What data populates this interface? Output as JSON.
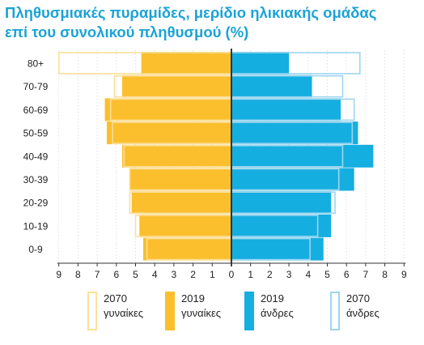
{
  "title_lines": [
    "Πληθυσμιακές πυραμίδες, μερίδιο ηλικιακής ομάδας",
    "επί του συνολικού πληθυσμού (%)"
  ],
  "colors": {
    "female_2019": "#fbbf2d",
    "male_2019": "#15aee0",
    "female_2070_outline": "#fbdf9a",
    "male_2070_outline": "#9dd6ef",
    "axis": "#333333",
    "title": "#1ba3d6"
  },
  "chart_data": {
    "type": "bar",
    "orientation": "horizontal-pyramid",
    "categories": [
      "80+",
      "70-79",
      "60-69",
      "50-59",
      "40-49",
      "30-39",
      "20-29",
      "10-19",
      "0-9"
    ],
    "series": [
      {
        "name": "2019 γυναίκες",
        "side": "left",
        "style": "filled",
        "values": [
          4.7,
          5.7,
          6.6,
          6.5,
          5.7,
          5.3,
          5.2,
          4.8,
          4.6
        ]
      },
      {
        "name": "2070 γυναίκες",
        "side": "left",
        "style": "outline",
        "values": [
          9.0,
          6.1,
          6.3,
          6.2,
          5.6,
          5.3,
          5.3,
          5.0,
          4.4
        ]
      },
      {
        "name": "2019 άνδρες",
        "side": "right",
        "style": "filled",
        "values": [
          3.0,
          4.2,
          5.7,
          6.6,
          7.4,
          6.4,
          5.2,
          5.2,
          4.8
        ]
      },
      {
        "name": "2070 άνδρες",
        "side": "right",
        "style": "outline",
        "values": [
          6.7,
          5.8,
          6.4,
          6.3,
          5.8,
          5.6,
          5.4,
          4.5,
          4.1
        ]
      }
    ],
    "x_ticks": [
      "9",
      "8",
      "7",
      "6",
      "5",
      "4",
      "3",
      "2",
      "1",
      "0",
      "1",
      "2",
      "3",
      "4",
      "5",
      "6",
      "7",
      "8",
      "9"
    ],
    "xlim": [
      -9,
      9
    ],
    "grid": true,
    "legend_position": "bottom"
  },
  "legend": [
    {
      "line1": "2070",
      "line2": "γυναίκες"
    },
    {
      "line1": "2019",
      "line2": "γυναίκες"
    },
    {
      "line1": "2019",
      "line2": "άνδρες"
    },
    {
      "line1": "2070",
      "line2": "άνδρες"
    }
  ]
}
